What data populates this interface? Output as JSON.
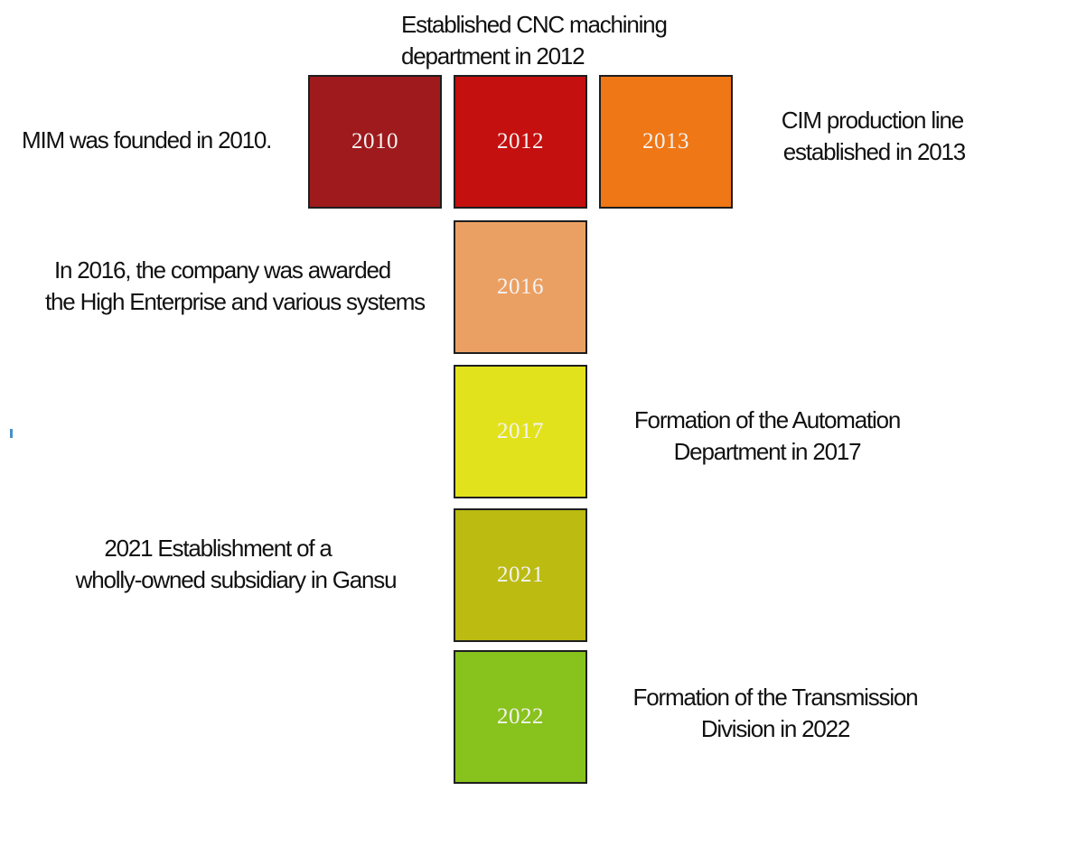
{
  "milestones": [
    {
      "year": "2010",
      "color": "#9e1a1c",
      "text": "MIM was founded in 2010."
    },
    {
      "year": "2012",
      "color": "#c4100f",
      "line1": "Established CNC machining",
      "line2": "department in 2012"
    },
    {
      "year": "2013",
      "color": "#ef7716",
      "line1": "CIM production line",
      "line2": "established in 2013"
    },
    {
      "year": "2016",
      "color": "#eba063",
      "line1": "In 2016, the company was awarded",
      "line2": "the High Enterprise and various systems"
    },
    {
      "year": "2017",
      "color": "#e2e21c",
      "line1": "Formation of the Automation",
      "line2": "Department in 2017"
    },
    {
      "year": "2021",
      "color": "#bbbb12",
      "line1": "2021 Establishment of a",
      "line2": "wholly-owned subsidiary in Gansu"
    },
    {
      "year": "2022",
      "color": "#88c21c",
      "line1": "Formation of the Transmission",
      "line2": "Division in 2022"
    }
  ]
}
